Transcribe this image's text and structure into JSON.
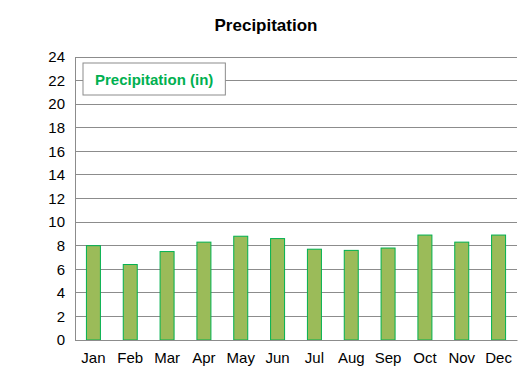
{
  "chart_data": {
    "type": "bar",
    "title": "Precipitation",
    "categories": [
      "Jan",
      "Feb",
      "Mar",
      "Apr",
      "May",
      "Jun",
      "Jul",
      "Aug",
      "Sep",
      "Oct",
      "Nov",
      "Dec"
    ],
    "series": [
      {
        "name": "Precipitation (in)",
        "color": "#9bbb59",
        "values": [
          8.0,
          6.4,
          7.5,
          8.3,
          8.8,
          8.6,
          7.7,
          7.6,
          7.8,
          8.9,
          8.3,
          8.9
        ]
      }
    ],
    "ylim": [
      0,
      24
    ],
    "yticks": [
      0,
      2,
      4,
      6,
      8,
      10,
      12,
      14,
      16,
      18,
      20,
      22,
      24
    ],
    "grid": true,
    "legend": "upper left"
  }
}
